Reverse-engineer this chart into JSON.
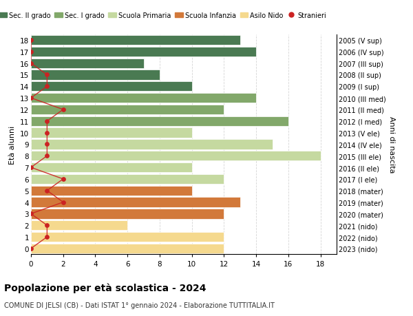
{
  "ages": [
    18,
    17,
    16,
    15,
    14,
    13,
    12,
    11,
    10,
    9,
    8,
    7,
    6,
    5,
    4,
    3,
    2,
    1,
    0
  ],
  "years": [
    "2005 (V sup)",
    "2006 (IV sup)",
    "2007 (III sup)",
    "2008 (II sup)",
    "2009 (I sup)",
    "2010 (III med)",
    "2011 (II med)",
    "2012 (I med)",
    "2013 (V ele)",
    "2014 (IV ele)",
    "2015 (III ele)",
    "2016 (II ele)",
    "2017 (I ele)",
    "2018 (mater)",
    "2019 (mater)",
    "2020 (mater)",
    "2021 (nido)",
    "2022 (nido)",
    "2023 (nido)"
  ],
  "values": [
    13,
    14,
    7,
    8,
    10,
    14,
    12,
    16,
    10,
    15,
    18,
    10,
    12,
    10,
    13,
    12,
    6,
    12,
    12
  ],
  "stranieri": [
    0,
    0,
    0,
    1,
    1,
    0,
    2,
    1,
    1,
    1,
    1,
    0,
    2,
    1,
    2,
    0,
    1,
    1,
    0
  ],
  "colors": {
    "sec2": "#4a7a52",
    "sec1": "#82a86a",
    "primaria": "#c5d9a0",
    "infanzia": "#d2793a",
    "nido": "#f5d98e",
    "stranieri_dot": "#cc2222",
    "stranieri_line": "#cc2222"
  },
  "category_colors": [
    "#4a7a52",
    "#4a7a52",
    "#4a7a52",
    "#4a7a52",
    "#4a7a52",
    "#82a86a",
    "#82a86a",
    "#82a86a",
    "#c5d9a0",
    "#c5d9a0",
    "#c5d9a0",
    "#c5d9a0",
    "#c5d9a0",
    "#d2793a",
    "#d2793a",
    "#d2793a",
    "#f5d98e",
    "#f5d98e",
    "#f5d98e"
  ],
  "title": "Popolazione per età scolastica - 2024",
  "subtitle": "COMUNE DI JELSI (CB) - Dati ISTAT 1° gennaio 2024 - Elaborazione TUTTITALIA.IT",
  "ylabel": "Età alunni",
  "right_label": "Anni di nascita",
  "xlim": [
    0,
    19
  ],
  "ylim": [
    -0.5,
    18.5
  ],
  "xticks": [
    0,
    2,
    4,
    6,
    8,
    10,
    12,
    14,
    16,
    18
  ],
  "legend_items": [
    {
      "label": "Sec. II grado",
      "color": "#4a7a52"
    },
    {
      "label": "Sec. I grado",
      "color": "#82a86a"
    },
    {
      "label": "Scuola Primaria",
      "color": "#c5d9a0"
    },
    {
      "label": "Scuola Infanzia",
      "color": "#d2793a"
    },
    {
      "label": "Asilo Nido",
      "color": "#f5d98e"
    },
    {
      "label": "Stranieri",
      "color": "#cc2222"
    }
  ]
}
